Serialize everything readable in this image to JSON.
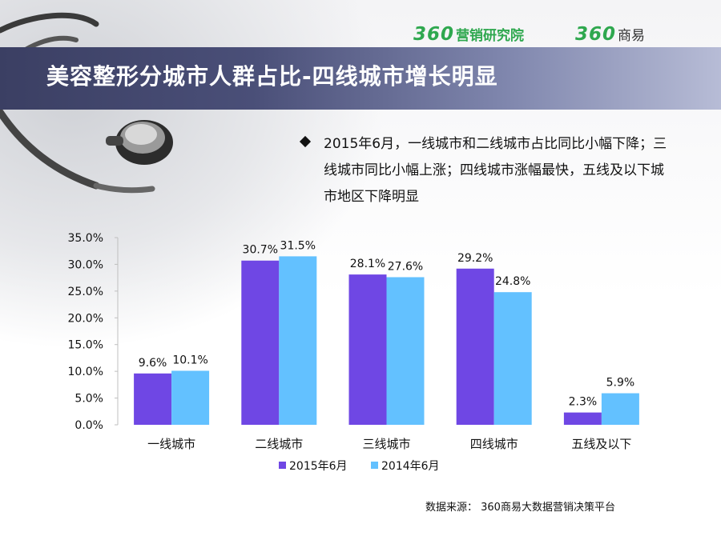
{
  "header": {
    "logo_left_num": "360",
    "logo_left_text": "营销研究院",
    "logo_right_num": "360",
    "logo_right_text": "商易",
    "title": "美容整形分城市人群占比-四线城市增长明显"
  },
  "note": "2015年6月，一线城市和二线城市占比同比小幅下降；三线城市同比小幅上涨；四线城市涨幅最快，五线及以下城市地区下降明显",
  "source": "数据来源：  360商易大数据营销决策平台",
  "colors": {
    "brand_green": "#2fa84f",
    "series_2015": "#6f47e4",
    "series_2014": "#63c1ff"
  },
  "icons": [
    "stethoscope-image"
  ],
  "chart_data": {
    "type": "bar",
    "title": "",
    "xlabel": "",
    "ylabel": "",
    "categories": [
      "一线城市",
      "二线城市",
      "三线城市",
      "四线城市",
      "五线及以下"
    ],
    "series": [
      {
        "name": "2015年6月",
        "values": [
          9.6,
          30.7,
          28.1,
          29.2,
          2.3
        ],
        "labels": [
          "9.6%",
          "30.7%",
          "28.1%",
          "29.2%",
          "2.3%"
        ]
      },
      {
        "name": "2014年6月",
        "values": [
          10.1,
          31.5,
          27.6,
          24.8,
          5.9
        ],
        "labels": [
          "10.1%",
          "31.5%",
          "27.6%",
          "24.8%",
          "5.9%"
        ]
      }
    ],
    "ylim": [
      0,
      35
    ],
    "yticks": [
      0,
      5,
      10,
      15,
      20,
      25,
      30,
      35
    ],
    "ytick_labels": [
      "0.0%",
      "5.0%",
      "10.0%",
      "15.0%",
      "20.0%",
      "25.0%",
      "30.0%",
      "35.0%"
    ],
    "grid": false,
    "legend": "bottom"
  }
}
